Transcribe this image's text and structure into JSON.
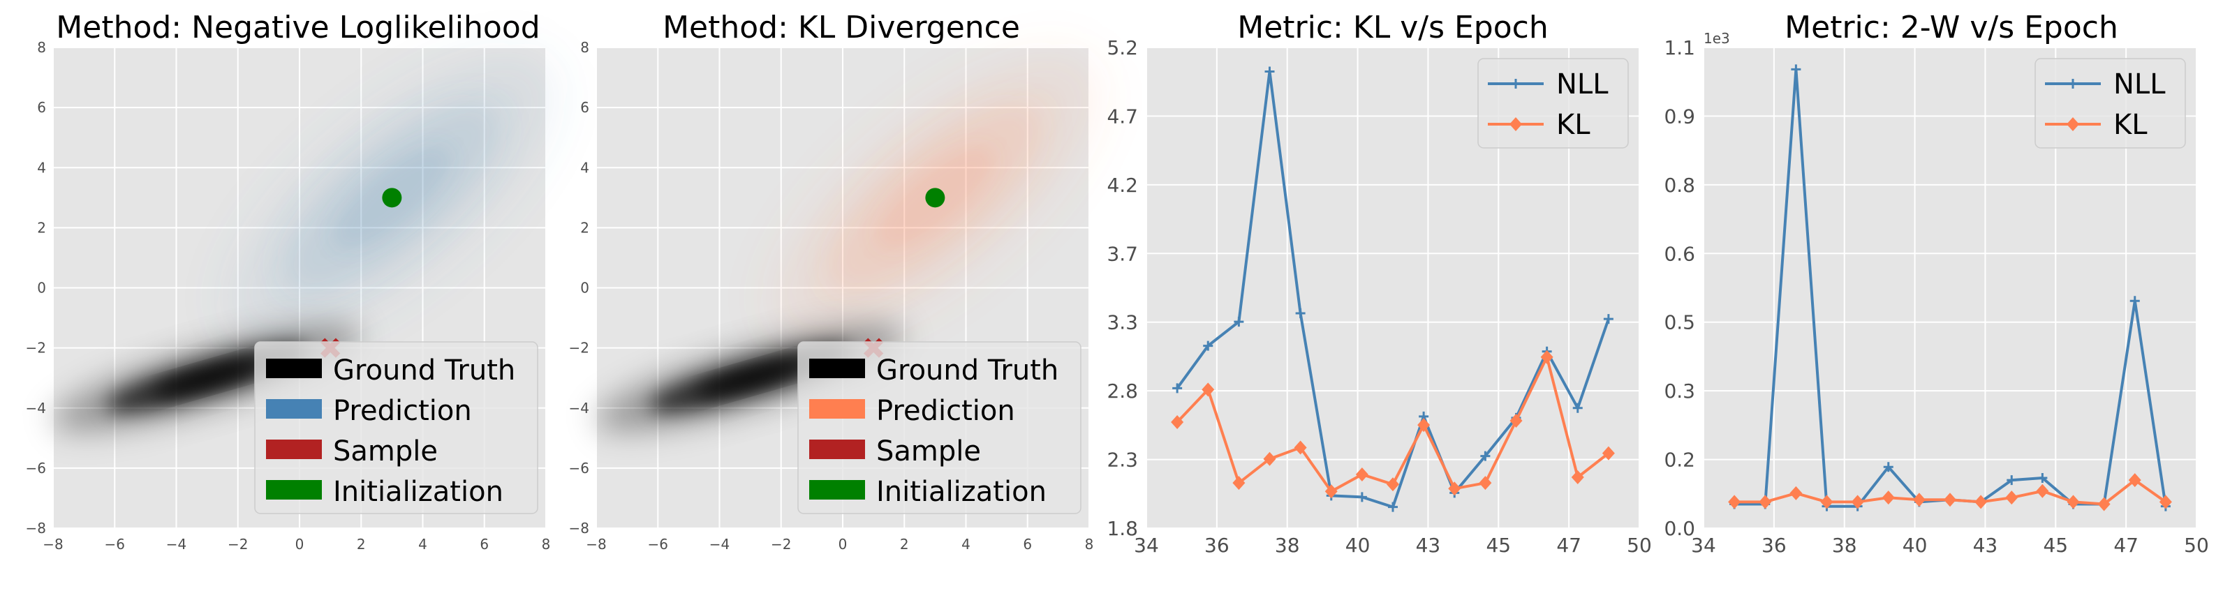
{
  "colors": {
    "ground_truth": "#000000",
    "nll_prediction": "#4682b4",
    "kl_prediction": "#ff7f50",
    "sample": "#b22222",
    "initialization": "#008000",
    "axes_bg": "#e5e5e5",
    "grid": "#ffffff",
    "nll_line": "#4682b4",
    "kl_line": "#ff7f50"
  },
  "chart_data": [
    {
      "type": "heatmap",
      "title": "Method: Negative Loglikelihood",
      "xlim": [
        -8,
        8
      ],
      "ylim": [
        -8,
        8
      ],
      "xticks": [
        "−8",
        "−6",
        "−4",
        "−2",
        "0",
        "2",
        "4",
        "6",
        "8"
      ],
      "yticks": [
        "−8",
        "−6",
        "−4",
        "−2",
        "0",
        "2",
        "4",
        "6",
        "8"
      ],
      "ground_truth": {
        "mean": [
          -3,
          -3
        ],
        "angle_deg": 16
      },
      "prediction": {
        "mean": [
          3,
          3
        ],
        "angle_deg": 40
      },
      "sample": [
        1,
        -2
      ],
      "initialization": [
        3,
        3
      ],
      "legend": [
        "Ground Truth",
        "Prediction",
        "Sample",
        "Initialization"
      ]
    },
    {
      "type": "heatmap",
      "title": "Method: KL Divergence",
      "xlim": [
        -8,
        8
      ],
      "ylim": [
        -8,
        8
      ],
      "xticks": [
        "−8",
        "−6",
        "−4",
        "−2",
        "0",
        "2",
        "4",
        "6",
        "8"
      ],
      "yticks": [
        "−8",
        "−6",
        "−4",
        "−2",
        "0",
        "2",
        "4",
        "6",
        "8"
      ],
      "ground_truth": {
        "mean": [
          -3,
          -3
        ],
        "angle_deg": 16
      },
      "prediction": {
        "mean": [
          3,
          3
        ],
        "angle_deg": 40
      },
      "sample": [
        1,
        -2
      ],
      "initialization": [
        3,
        3
      ],
      "legend": [
        "Ground Truth",
        "Prediction",
        "Sample",
        "Initialization"
      ]
    },
    {
      "type": "line",
      "title": "Metric: KL v/s Epoch",
      "xlim": [
        34,
        50
      ],
      "ylim": [
        1.8,
        5.2
      ],
      "xticks": [
        "34",
        "36",
        "38",
        "40",
        "43",
        "45",
        "47",
        "50"
      ],
      "yticks": [
        "1.8",
        "2.3",
        "2.8",
        "3.3",
        "3.7",
        "4.2",
        "4.7",
        "5.2"
      ],
      "x": [
        35,
        36,
        37,
        38,
        39,
        40,
        41,
        42,
        43,
        44,
        45,
        46,
        47,
        48,
        49
      ],
      "series": [
        {
          "name": "NLL",
          "marker": "plus",
          "values": [
            2.79,
            3.09,
            3.26,
            5.03,
            3.32,
            2.03,
            2.02,
            1.95,
            2.59,
            2.05,
            2.31,
            2.58,
            3.05,
            2.65,
            3.28
          ]
        },
        {
          "name": "KL",
          "marker": "diamond",
          "values": [
            2.55,
            2.78,
            2.12,
            2.29,
            2.37,
            2.06,
            2.18,
            2.11,
            2.53,
            2.08,
            2.12,
            2.56,
            3.01,
            2.16,
            2.33
          ]
        }
      ],
      "legend": [
        "NLL",
        "KL"
      ],
      "legend_position": "top-right"
    },
    {
      "type": "line",
      "title": "Metric: 2-W v/s Epoch",
      "xlim": [
        34,
        50
      ],
      "ylim": [
        0.0,
        1.1
      ],
      "scale_label": "1e3",
      "xticks": [
        "34",
        "36",
        "38",
        "40",
        "43",
        "45",
        "47",
        "50"
      ],
      "yticks": [
        "0.0",
        "0.2",
        "0.3",
        "0.5",
        "0.6",
        "0.8",
        "0.9",
        "1.1"
      ],
      "x": [
        35,
        36,
        37,
        38,
        39,
        40,
        41,
        42,
        43,
        44,
        45,
        46,
        47,
        48,
        49
      ],
      "series": [
        {
          "name": "NLL",
          "marker": "plus",
          "values": [
            0.055,
            0.055,
            1.05,
            0.05,
            0.05,
            0.14,
            0.06,
            0.065,
            0.06,
            0.11,
            0.115,
            0.055,
            0.055,
            0.52,
            0.05
          ]
        },
        {
          "name": "KL",
          "marker": "diamond",
          "values": [
            0.06,
            0.06,
            0.08,
            0.06,
            0.06,
            0.07,
            0.065,
            0.065,
            0.06,
            0.07,
            0.085,
            0.06,
            0.055,
            0.11,
            0.06
          ]
        }
      ],
      "legend": [
        "NLL",
        "KL"
      ],
      "legend_position": "top-right"
    }
  ]
}
